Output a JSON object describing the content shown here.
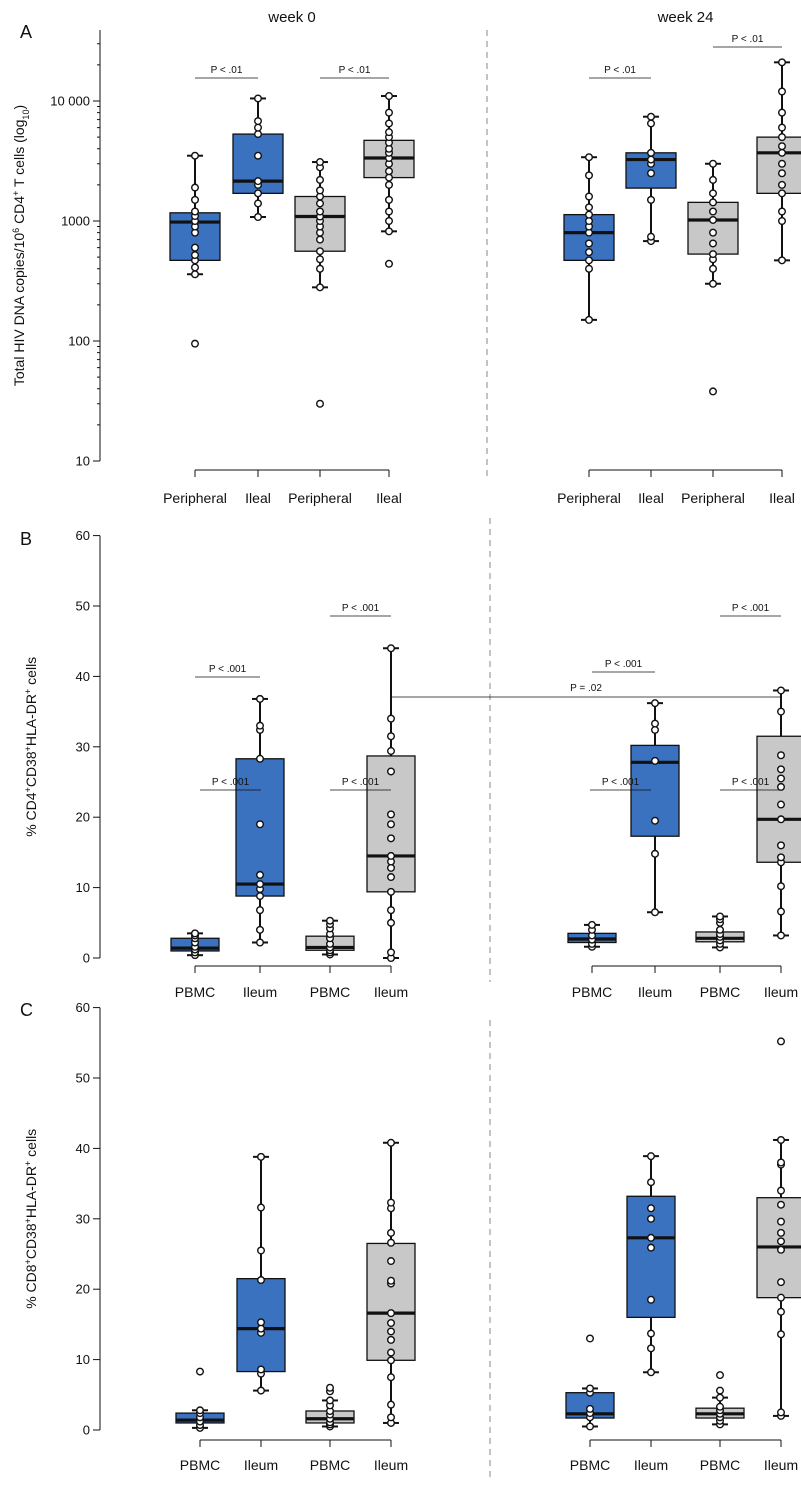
{
  "chart_data": [
    {
      "type": "box",
      "panel": "A",
      "ylabel": "Total HIV DNA copies/10⁶ CD4⁺ T cells (log₁₀)",
      "yscale": "log",
      "ylim": [
        10,
        30000
      ],
      "ytick_values": [
        10,
        100,
        1000,
        10000
      ],
      "ytick_labels": [
        "10",
        "100",
        "1000",
        "10 000"
      ],
      "groups": [
        {
          "title": "week 0",
          "categories": [
            "Peripheral",
            "Ileal",
            "Peripheral",
            "Ileal"
          ],
          "boxes": [
            {
              "color": "#3a72c0",
              "min": 360,
              "q1": 470,
              "median": 980,
              "q3": 1170,
              "max": 3500,
              "points": [
                95,
                360,
                410,
                470,
                520,
                600,
                800,
                900,
                1000,
                1100,
                1200,
                1500,
                1900,
                3500
              ]
            },
            {
              "color": "#3a72c0",
              "min": 1080,
              "q1": 1700,
              "median": 2150,
              "q3": 5300,
              "max": 10500,
              "points": [
                1080,
                1400,
                1700,
                2000,
                2150,
                3500,
                5300,
                6000,
                6800,
                10500
              ]
            },
            {
              "color": "#c8c8c8",
              "min": 280,
              "q1": 560,
              "median": 1090,
              "q3": 1600,
              "max": 3100,
              "points": [
                30,
                280,
                400,
                480,
                560,
                700,
                800,
                900,
                1000,
                1090,
                1200,
                1400,
                1600,
                1800,
                2200,
                2800,
                3100
              ]
            },
            {
              "color": "#c8c8c8",
              "min": 820,
              "q1": 2300,
              "median": 3350,
              "q3": 4700,
              "max": 11000,
              "points": [
                440,
                820,
                1000,
                1200,
                1500,
                2000,
                2300,
                2600,
                3000,
                3350,
                3700,
                4000,
                4500,
                5000,
                5500,
                6500,
                8000,
                11000
              ]
            }
          ],
          "comparisons": [
            {
              "from": 0,
              "to": 1,
              "label": "P < .01"
            },
            {
              "from": 2,
              "to": 3,
              "label": "P < .01"
            }
          ]
        },
        {
          "title": "week 24",
          "categories": [
            "Peripheral",
            "Ileal",
            "Peripheral",
            "Ileal"
          ],
          "boxes": [
            {
              "color": "#3a72c0",
              "min": 150,
              "q1": 470,
              "median": 800,
              "q3": 1130,
              "max": 3400,
              "points": [
                150,
                400,
                470,
                550,
                650,
                800,
                900,
                1000,
                1130,
                1300,
                1600,
                2400,
                3400
              ]
            },
            {
              "color": "#3a72c0",
              "min": 680,
              "q1": 1880,
              "median": 3250,
              "q3": 3700,
              "max": 7400,
              "points": [
                680,
                740,
                1500,
                2500,
                3000,
                3250,
                3700,
                6500,
                7400
              ]
            },
            {
              "color": "#c8c8c8",
              "min": 300,
              "q1": 530,
              "median": 1020,
              "q3": 1430,
              "max": 3000,
              "points": [
                38,
                300,
                400,
                480,
                530,
                650,
                800,
                1020,
                1200,
                1430,
                1700,
                2200,
                3000
              ]
            },
            {
              "color": "#c8c8c8",
              "min": 470,
              "q1": 1700,
              "median": 3700,
              "q3": 5000,
              "max": 21000,
              "points": [
                470,
                1000,
                1200,
                1700,
                2000,
                2500,
                3000,
                3700,
                4200,
                5000,
                6000,
                8000,
                12000,
                21000
              ]
            }
          ],
          "comparisons": [
            {
              "from": 0,
              "to": 1,
              "label": "P < .01"
            },
            {
              "from": 2,
              "to": 3,
              "label": "P < .01"
            }
          ]
        }
      ]
    },
    {
      "type": "box",
      "panel": "B",
      "ylabel": "% CD4⁺CD38⁺HLA-DR⁺ cells",
      "yscale": "linear",
      "ylim": [
        0,
        60
      ],
      "ytick_values": [
        0,
        10,
        20,
        30,
        40,
        50,
        60
      ],
      "ytick_labels": [
        "0",
        "10",
        "20",
        "30",
        "40",
        "50",
        "60"
      ],
      "groups": [
        {
          "title": "",
          "categories": [
            "PBMC",
            "Ileum",
            "PBMC",
            "Ileum"
          ],
          "boxes": [
            {
              "color": "#3a72c0",
              "min": 0.4,
              "q1": 1.0,
              "median": 1.4,
              "q3": 2.8,
              "max": 3.5,
              "points": [
                0.4,
                0.8,
                1.2,
                1.6,
                2.2,
                2.8,
                3.2,
                3.5
              ]
            },
            {
              "color": "#3a72c0",
              "min": 2.2,
              "q1": 8.8,
              "median": 10.5,
              "q3": 28.3,
              "max": 36.8,
              "points": [
                2.2,
                4.0,
                6.8,
                8.8,
                9.8,
                10.5,
                11.8,
                19.0,
                28.3,
                32.4,
                33.0,
                36.8
              ]
            },
            {
              "color": "#c8c8c8",
              "min": 0.5,
              "q1": 1.1,
              "median": 1.5,
              "q3": 3.1,
              "max": 5.3,
              "points": [
                0.5,
                0.8,
                1.1,
                1.5,
                2.0,
                2.8,
                3.4,
                4.2,
                4.8,
                5.3
              ]
            },
            {
              "color": "#c8c8c8",
              "min": 0,
              "q1": 9.4,
              "median": 14.5,
              "q3": 28.7,
              "max": 44,
              "points": [
                0,
                0.8,
                5.0,
                6.8,
                9.4,
                11.5,
                12.8,
                13.7,
                14.5,
                17.0,
                19.0,
                20.4,
                26.5,
                29.4,
                31.5,
                34.0,
                44
              ]
            }
          ],
          "comparisons": [
            {
              "from": 0,
              "to": 1,
              "label": "P < .001"
            },
            {
              "from": 2,
              "to": 3,
              "label": "P < .001"
            }
          ]
        },
        {
          "title": "",
          "categories": [
            "PBMC",
            "Ileum",
            "PBMC",
            "Ileum"
          ],
          "boxes": [
            {
              "color": "#3a72c0",
              "min": 1.6,
              "q1": 2.2,
              "median": 2.7,
              "q3": 3.5,
              "max": 4.7,
              "points": [
                1.6,
                2.0,
                2.6,
                3.2,
                4.0,
                4.7
              ]
            },
            {
              "color": "#3a72c0",
              "min": 6.5,
              "q1": 17.3,
              "median": 27.8,
              "q3": 30.2,
              "max": 36.2,
              "points": [
                6.5,
                14.8,
                19.5,
                28.0,
                32.4,
                33.3,
                36.2
              ]
            },
            {
              "color": "#c8c8c8",
              "min": 1.5,
              "q1": 2.3,
              "median": 2.8,
              "q3": 3.7,
              "max": 5.9,
              "points": [
                1.5,
                2.0,
                2.5,
                3.0,
                3.4,
                4.0,
                5.0,
                5.5,
                5.9
              ]
            },
            {
              "color": "#c8c8c8",
              "min": 3.2,
              "q1": 13.6,
              "median": 19.7,
              "q3": 31.5,
              "max": 38,
              "points": [
                3.2,
                6.6,
                10.2,
                13.6,
                14.3,
                16.0,
                19.7,
                21.8,
                24.3,
                25.5,
                26.8,
                28.8,
                35.0,
                38
              ]
            }
          ],
          "comparisons": [
            {
              "from": 0,
              "to": 1,
              "label": "P < .001"
            },
            {
              "from": 2,
              "to": 3,
              "label": "P < .001"
            }
          ]
        }
      ]
    },
    {
      "type": "box",
      "panel": "C",
      "ylabel": "% CD8⁺CD38⁺HLA-DR⁺ cells",
      "yscale": "linear",
      "ylim": [
        0,
        60
      ],
      "ytick_values": [
        0,
        10,
        20,
        30,
        40,
        50,
        60
      ],
      "ytick_labels": [
        "0",
        "10",
        "20",
        "30",
        "40",
        "50",
        "60"
      ],
      "groups": [
        {
          "title": "",
          "categories": [
            "PBMC",
            "Ileum",
            "PBMC",
            "Ileum"
          ],
          "boxes": [
            {
              "color": "#3a72c0",
              "min": 0.3,
              "q1": 1.0,
              "median": 1.4,
              "q3": 2.4,
              "max": 2.8,
              "points": [
                0.3,
                0.7,
                1.2,
                1.8,
                2.4,
                2.8,
                8.3
              ]
            },
            {
              "color": "#3a72c0",
              "min": 5.6,
              "q1": 8.3,
              "median": 14.4,
              "q3": 21.5,
              "max": 38.8,
              "points": [
                5.6,
                8.0,
                8.6,
                13.8,
                14.4,
                15.3,
                21.3,
                25.5,
                31.6,
                38.8
              ]
            },
            {
              "color": "#c8c8c8",
              "min": 0.5,
              "q1": 1.0,
              "median": 1.6,
              "q3": 2.7,
              "max": 4.2,
              "points": [
                0.5,
                0.8,
                1.1,
                1.6,
                2.2,
                2.7,
                3.5,
                4.2,
                5.5,
                6.0
              ]
            },
            {
              "color": "#c8c8c8",
              "min": 1.0,
              "q1": 9.9,
              "median": 16.6,
              "q3": 26.5,
              "max": 40.8,
              "points": [
                1.0,
                1.8,
                3.6,
                7.5,
                9.9,
                11.0,
                12.8,
                14.0,
                15.2,
                16.6,
                20.8,
                21.2,
                24.0,
                26.6,
                28.0,
                31.5,
                32.3,
                40.8
              ]
            }
          ],
          "comparisons": [
            {
              "from": 0,
              "to": 1,
              "label": "P < .001"
            },
            {
              "from": 2,
              "to": 3,
              "label": "P < .001"
            }
          ]
        },
        {
          "title": "",
          "categories": [
            "PBMC",
            "Ileum",
            "PBMC",
            "Ileum"
          ],
          "boxes": [
            {
              "color": "#3a72c0",
              "min": 0.5,
              "q1": 1.7,
              "median": 2.3,
              "q3": 5.3,
              "max": 5.9,
              "points": [
                0.5,
                1.8,
                2.4,
                3.0,
                5.3,
                5.9,
                13.0
              ]
            },
            {
              "color": "#3a72c0",
              "min": 8.2,
              "q1": 16.0,
              "median": 27.3,
              "q3": 33.2,
              "max": 38.9,
              "points": [
                8.2,
                11.6,
                13.7,
                18.5,
                25.9,
                27.3,
                30.0,
                31.5,
                35.2,
                38.9
              ]
            },
            {
              "color": "#c8c8c8",
              "min": 0.8,
              "q1": 1.7,
              "median": 2.3,
              "q3": 3.1,
              "max": 4.6,
              "points": [
                0.8,
                1.3,
                1.8,
                2.3,
                2.8,
                3.3,
                4.6,
                5.6,
                7.8
              ]
            },
            {
              "color": "#c8c8c8",
              "min": 2.0,
              "q1": 18.8,
              "median": 26.0,
              "q3": 33.0,
              "max": 41.2,
              "points": [
                2.0,
                2.5,
                13.6,
                16.8,
                18.8,
                21.0,
                25.6,
                26.8,
                28.0,
                29.6,
                32.0,
                34.0,
                37.7,
                38.0,
                41.2,
                55.2
              ]
            }
          ],
          "comparisons": [
            {
              "from": 0,
              "to": 1,
              "label": "P < .001"
            },
            {
              "from": 2,
              "to": 3,
              "label": "P < .001"
            }
          ]
        }
      ],
      "cross_comparison": {
        "from_group": 0,
        "from_box": 3,
        "to_group": 1,
        "to_box": 3,
        "label": "P = .02"
      }
    }
  ]
}
